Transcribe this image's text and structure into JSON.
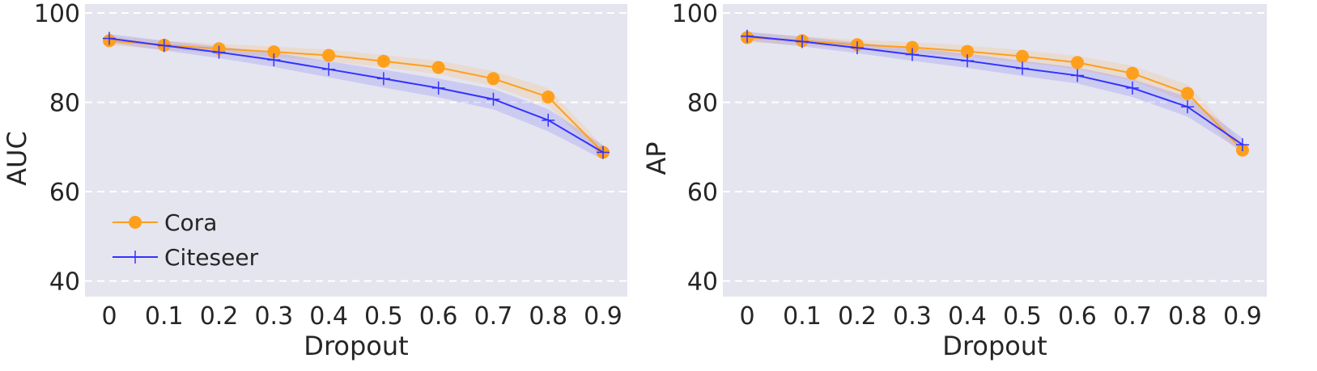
{
  "chart_data": [
    {
      "type": "line",
      "xlabel": "Dropout",
      "ylabel": "AUC",
      "categories": [
        "0",
        "0.1",
        "0.2",
        "0.3",
        "0.4",
        "0.5",
        "0.6",
        "0.7",
        "0.8",
        "0.9"
      ],
      "yticks": [
        40,
        60,
        80,
        100
      ],
      "ylim": [
        36.5,
        102
      ],
      "grid": true,
      "legend_position": "lower-left",
      "series": [
        {
          "name": "Cora",
          "color": "#ff9f1c",
          "marker": "circle",
          "values": [
            93.8,
            92.8,
            92.0,
            91.3,
            90.5,
            89.2,
            87.8,
            85.3,
            81.2,
            68.8
          ],
          "band": [
            1.0,
            1.0,
            1.1,
            1.2,
            1.3,
            1.4,
            1.5,
            1.7,
            2.0,
            1.4
          ]
        },
        {
          "name": "Citeseer",
          "color": "#3333ff",
          "marker": "plus",
          "values": [
            94.3,
            92.7,
            91.2,
            89.5,
            87.4,
            85.3,
            83.2,
            80.7,
            76.0,
            68.8
          ],
          "band": [
            1.0,
            1.1,
            1.3,
            1.6,
            1.8,
            2.0,
            2.1,
            2.3,
            2.5,
            1.6
          ]
        }
      ]
    },
    {
      "type": "line",
      "xlabel": "Dropout",
      "ylabel": "AP",
      "categories": [
        "0",
        "0.1",
        "0.2",
        "0.3",
        "0.4",
        "0.5",
        "0.6",
        "0.7",
        "0.8",
        "0.9"
      ],
      "yticks": [
        40,
        60,
        80,
        100
      ],
      "ylim": [
        36.5,
        102
      ],
      "grid": true,
      "series": [
        {
          "name": "Cora",
          "color": "#ff9f1c",
          "marker": "circle",
          "values": [
            94.5,
            93.8,
            92.9,
            92.3,
            91.4,
            90.3,
            88.9,
            86.5,
            82.0,
            69.3
          ],
          "band": [
            1.0,
            1.0,
            1.1,
            1.2,
            1.3,
            1.4,
            1.5,
            1.7,
            2.0,
            1.4
          ]
        },
        {
          "name": "Citeseer",
          "color": "#3333ff",
          "marker": "plus",
          "values": [
            94.8,
            93.6,
            92.2,
            90.7,
            89.3,
            87.6,
            86.0,
            83.2,
            79.0,
            70.5
          ],
          "band": [
            1.0,
            1.1,
            1.2,
            1.4,
            1.6,
            1.7,
            1.8,
            2.0,
            2.2,
            1.5
          ]
        }
      ]
    }
  ]
}
